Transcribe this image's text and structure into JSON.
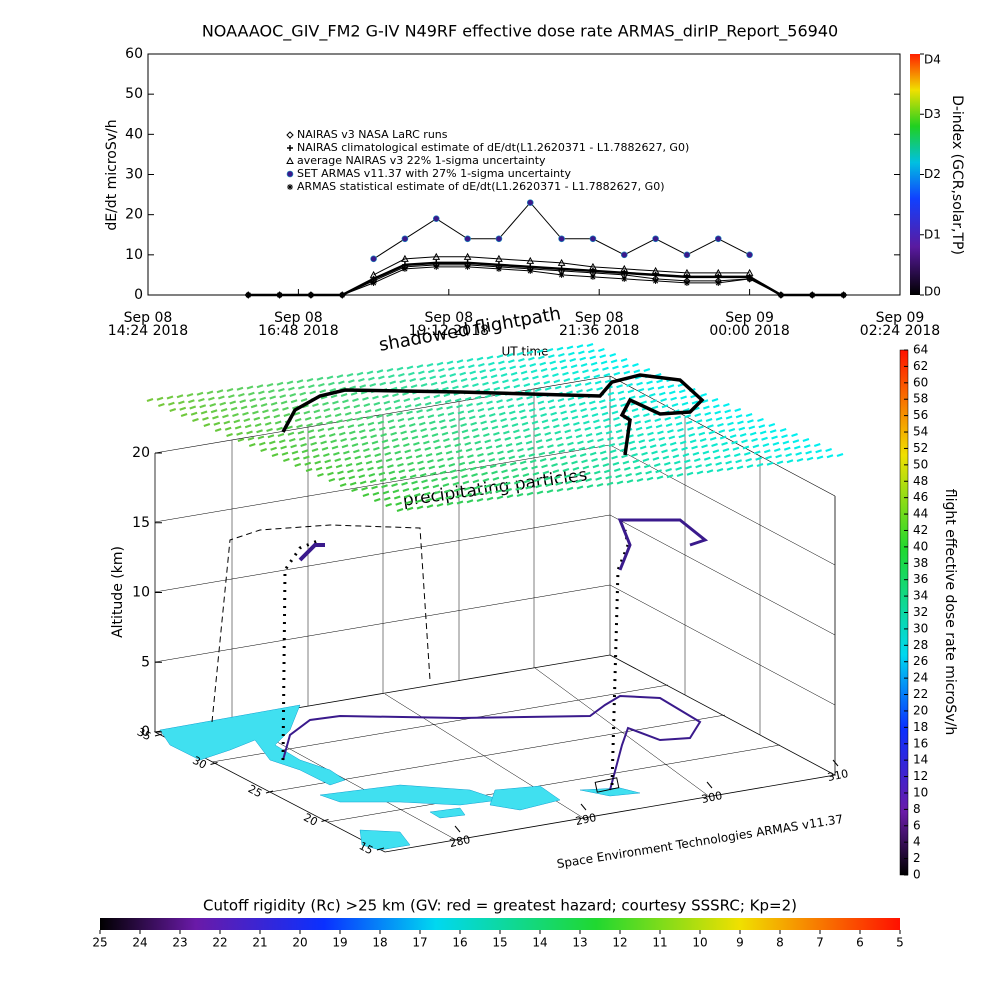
{
  "chart_data": [
    {
      "type": "line",
      "title": "NOAAAOC_GIV_FM2 G-IV    N49RF   effective dose rate ARMAS_dirIP_Report_56940",
      "ylabel": "dE/dt microSv/h",
      "xlabel": "UT time",
      "xlim": [
        "2018-09-08T14:24",
        "2018-09-09T02:24"
      ],
      "xticks": [
        {
          "value": "2018-09-08T14:24",
          "label": "Sep 08\n14:24 2018"
        },
        {
          "value": "2018-09-08T16:48",
          "label": "Sep 08\n16:48 2018"
        },
        {
          "value": "2018-09-08T19:12",
          "label": "Sep 08\n19:12 2018"
        },
        {
          "value": "2018-09-08T21:36",
          "label": "Sep 08\n21:36 2018"
        },
        {
          "value": "2018-09-09T00:00",
          "label": "Sep 09\n00:00 2018"
        },
        {
          "value": "2018-09-09T02:24",
          "label": "Sep 09\n02:24 2018"
        }
      ],
      "ylim": [
        0,
        60
      ],
      "yticks": [
        0,
        10,
        20,
        30,
        40,
        50,
        60
      ],
      "x": [
        "2018-09-08T16:00",
        "2018-09-08T16:30",
        "2018-09-08T17:00",
        "2018-09-08T17:30",
        "2018-09-08T18:00",
        "2018-09-08T18:30",
        "2018-09-08T19:00",
        "2018-09-08T19:30",
        "2018-09-08T20:00",
        "2018-09-08T20:30",
        "2018-09-08T21:00",
        "2018-09-08T21:30",
        "2018-09-08T22:00",
        "2018-09-08T22:30",
        "2018-09-08T23:00",
        "2018-09-08T23:30",
        "2018-09-09T00:00",
        "2018-09-09T00:30",
        "2018-09-09T01:00",
        "2018-09-09T01:30"
      ],
      "series": [
        {
          "name": "NAIRAS v3 NASA LaRC runs",
          "marker": "diamond",
          "color": "#000000",
          "values": [
            0,
            0,
            0,
            0,
            3.5,
            7,
            7.5,
            7.5,
            7,
            6.5,
            6,
            5.5,
            5,
            4,
            3.5,
            3.5,
            4,
            0,
            0,
            0
          ]
        },
        {
          "name": "NAIRAS climatological estimate of dE/dt(L1.2620371 - L1.7882627, G0)",
          "marker": "plus",
          "color": "#000000",
          "values": [
            0,
            0,
            0,
            0,
            4,
            7.5,
            8,
            8,
            7.5,
            7,
            6.5,
            6,
            5.5,
            5,
            4.5,
            4.5,
            4.5,
            0,
            0,
            0
          ]
        },
        {
          "name": "average NAIRAS v3 22% 1-sigma uncertainty",
          "marker": "triangle",
          "color": "#000000",
          "values": [
            null,
            null,
            null,
            null,
            5,
            9,
            9.5,
            9.5,
            9,
            8.5,
            8,
            7,
            6.5,
            6,
            5.5,
            5.5,
            5.5,
            null,
            null,
            null
          ]
        },
        {
          "name": "SET ARMAS v11.37 with 27% 1-sigma uncertainty",
          "marker": "circle",
          "color": "#3a1a8c",
          "values": [
            null,
            null,
            null,
            null,
            9,
            14,
            19,
            14,
            14,
            23,
            14,
            14,
            10,
            14,
            10,
            14,
            10,
            null,
            null,
            null
          ]
        },
        {
          "name": "ARMAS statistical estimate of dE/dt(L1.2620371 - L1.7882627, G0)",
          "marker": "asterisk",
          "color": "#000000",
          "values": [
            0,
            0,
            0,
            0,
            3,
            6.5,
            7,
            7,
            6.5,
            6,
            5,
            4.5,
            4,
            3.5,
            3,
            3,
            4,
            0,
            0,
            0
          ]
        }
      ],
      "colorbar": {
        "label": "D-index (GCR,solar,TP)",
        "lim": [
          0,
          4
        ],
        "ticks": [
          {
            "value": 0,
            "label": "D0"
          },
          {
            "value": 1,
            "label": "D1"
          },
          {
            "value": 2,
            "label": "D2"
          },
          {
            "value": 3,
            "label": "D3"
          },
          {
            "value": 4,
            "label": "D4"
          }
        ]
      }
    },
    {
      "type": "surface3d",
      "title": "shadowed flightpath",
      "annotation": "precipitating particles",
      "zlabel": "Altitude (km)",
      "zlim": [
        0,
        20
      ],
      "zticks": [
        0,
        5,
        10,
        15,
        20
      ],
      "ylim": [
        35,
        15
      ],
      "yticks": [
        35,
        30,
        25,
        20,
        15
      ],
      "xlim": [
        280,
        310
      ],
      "xticks": [
        280,
        290,
        300,
        310
      ],
      "credit": "Space Environment Technologies ARMAS v11.37",
      "colorbar": {
        "label": "flight effective dose rate microSv/h",
        "lim": [
          0,
          64
        ],
        "ticks": [
          0,
          2,
          4,
          6,
          8,
          10,
          12,
          14,
          16,
          18,
          20,
          22,
          24,
          26,
          28,
          30,
          32,
          34,
          36,
          38,
          40,
          42,
          44,
          46,
          48,
          50,
          52,
          54,
          56,
          58,
          60,
          62,
          64
        ]
      },
      "bottom_colorbar": {
        "label": "Cutoff rigidity (Rc) >25 km (GV: red = greatest hazard; courtesy SSSRC; Kp=2)",
        "lim": [
          25,
          5
        ],
        "ticks": [
          25,
          24,
          23,
          22,
          21,
          20,
          19,
          18,
          17,
          16,
          15,
          14,
          13,
          12,
          11,
          10,
          9,
          8,
          7,
          6,
          5
        ]
      }
    }
  ]
}
